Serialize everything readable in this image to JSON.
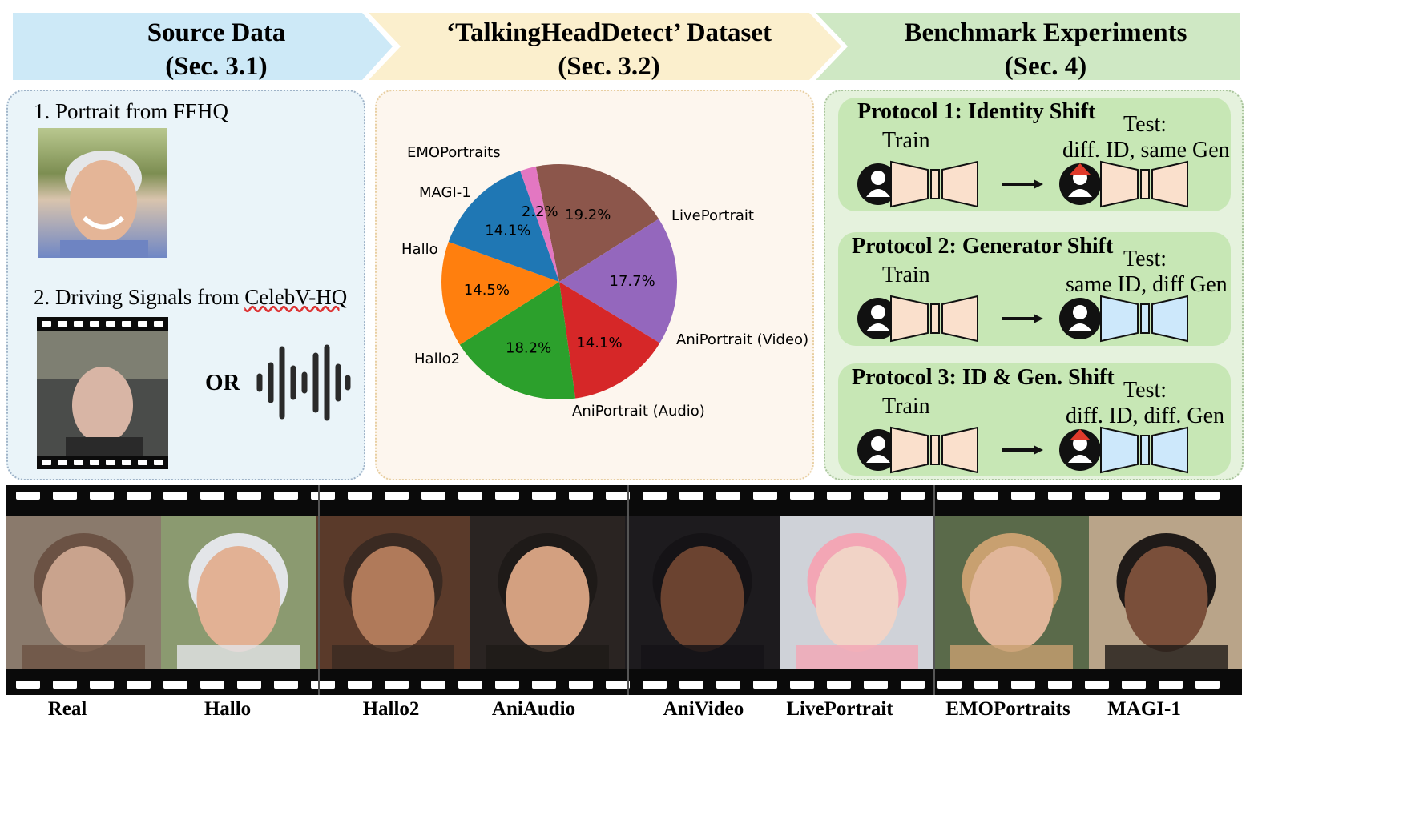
{
  "banners": [
    {
      "title": "Source Data",
      "sub": "(Sec. 3.1)",
      "color": "#cde9f7"
    },
    {
      "title": "‘TalkingHeadDetect’ Dataset",
      "sub": "(Sec. 3.2)",
      "color": "#fbefcd"
    },
    {
      "title": "Benchmark Experiments",
      "sub": "(Sec. 4)",
      "color": "#cfe8c4"
    }
  ],
  "source": {
    "item1": "1. Portrait from FFHQ",
    "item2_prefix": "2. Driving Signals from ",
    "item2_link": "CelebV-HQ",
    "or_label": "OR"
  },
  "chart_data": {
    "type": "pie",
    "slices": [
      {
        "label": "EMOPortraits",
        "value": 19.2,
        "color": "#8c564b"
      },
      {
        "label": "LivePortrait",
        "value": 17.7,
        "color": "#9467bd"
      },
      {
        "label": "AniPortrait (Video)",
        "value": 14.1,
        "color": "#d62728"
      },
      {
        "label": "AniPortrait (Audio)",
        "value": 18.2,
        "color": "#2ca02c"
      },
      {
        "label": "Hallo2",
        "value": 14.5,
        "color": "#ff7f0e"
      },
      {
        "label": "Hallo",
        "value": 14.1,
        "color": "#1f77b4"
      },
      {
        "label": "MAGI-1",
        "value": 2.2,
        "color": "#e377c2"
      }
    ],
    "value_format": "%"
  },
  "protocols": [
    {
      "title": "Protocol 1: Identity Shift",
      "train": "Train",
      "test_head": "Test:",
      "test": "diff. ID, same Gen",
      "new_id": true,
      "new_gen": false
    },
    {
      "title": "Protocol 2: Generator Shift",
      "train": "Train",
      "test_head": "Test:",
      "test": "same ID, diff Gen",
      "new_id": false,
      "new_gen": true
    },
    {
      "title": "Protocol 3: ID & Gen. Shift",
      "train": "Train",
      "test_head": "Test:",
      "test": "diff. ID, diff. Gen",
      "new_id": true,
      "new_gen": true
    }
  ],
  "filmstrip": {
    "labels": [
      "Real",
      "Hallo",
      "Hallo2",
      "AniAudio",
      "AniVideo",
      "LivePortrait",
      "EMOPortraits",
      "MAGI-1"
    ]
  },
  "colors": {
    "model_fill": "#fae0cc",
    "gen_blue": "#cde8fb",
    "id_marker_red": "#e03a2b",
    "or_blue": "#4f7fd9"
  }
}
